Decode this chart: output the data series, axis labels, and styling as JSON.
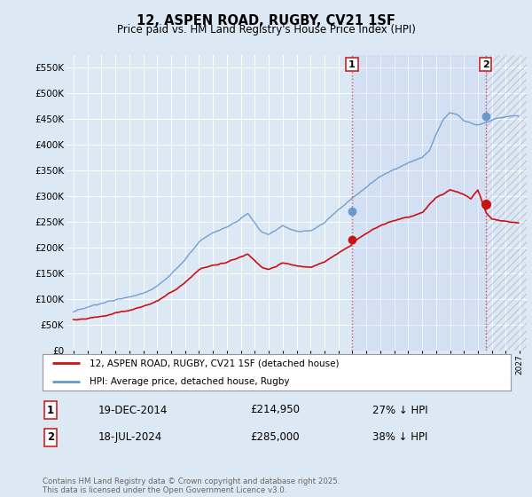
{
  "title": "12, ASPEN ROAD, RUGBY, CV21 1SF",
  "subtitle": "Price paid vs. HM Land Registry's House Price Index (HPI)",
  "ylim": [
    0,
    575000
  ],
  "yticks": [
    0,
    50000,
    100000,
    150000,
    200000,
    250000,
    300000,
    350000,
    400000,
    450000,
    500000,
    550000
  ],
  "xlim_start": 1994.5,
  "xlim_end": 2027.5,
  "background_color": "#dde8f5",
  "plot_bg_color": "#dde8f5",
  "grid_color": "#ffffff",
  "hpi_color": "#6699cc",
  "price_color": "#cc1111",
  "sale1_date": "19-DEC-2014",
  "sale1_price": 214950,
  "sale1_hpi_pct": "27% ↓ HPI",
  "sale2_date": "18-JUL-2024",
  "sale2_price": 285000,
  "sale2_hpi_pct": "38% ↓ HPI",
  "legend_label1": "12, ASPEN ROAD, RUGBY, CV21 1SF (detached house)",
  "legend_label2": "HPI: Average price, detached house, Rugby",
  "footer": "Contains HM Land Registry data © Crown copyright and database right 2025.\nThis data is licensed under the Open Government Licence v3.0.",
  "vline1_x": 2014.97,
  "vline2_x": 2024.55,
  "marker1_hpi_y": 270000,
  "marker2_hpi_y": 455000,
  "marker1_price_y": 214950,
  "marker2_price_y": 285000
}
